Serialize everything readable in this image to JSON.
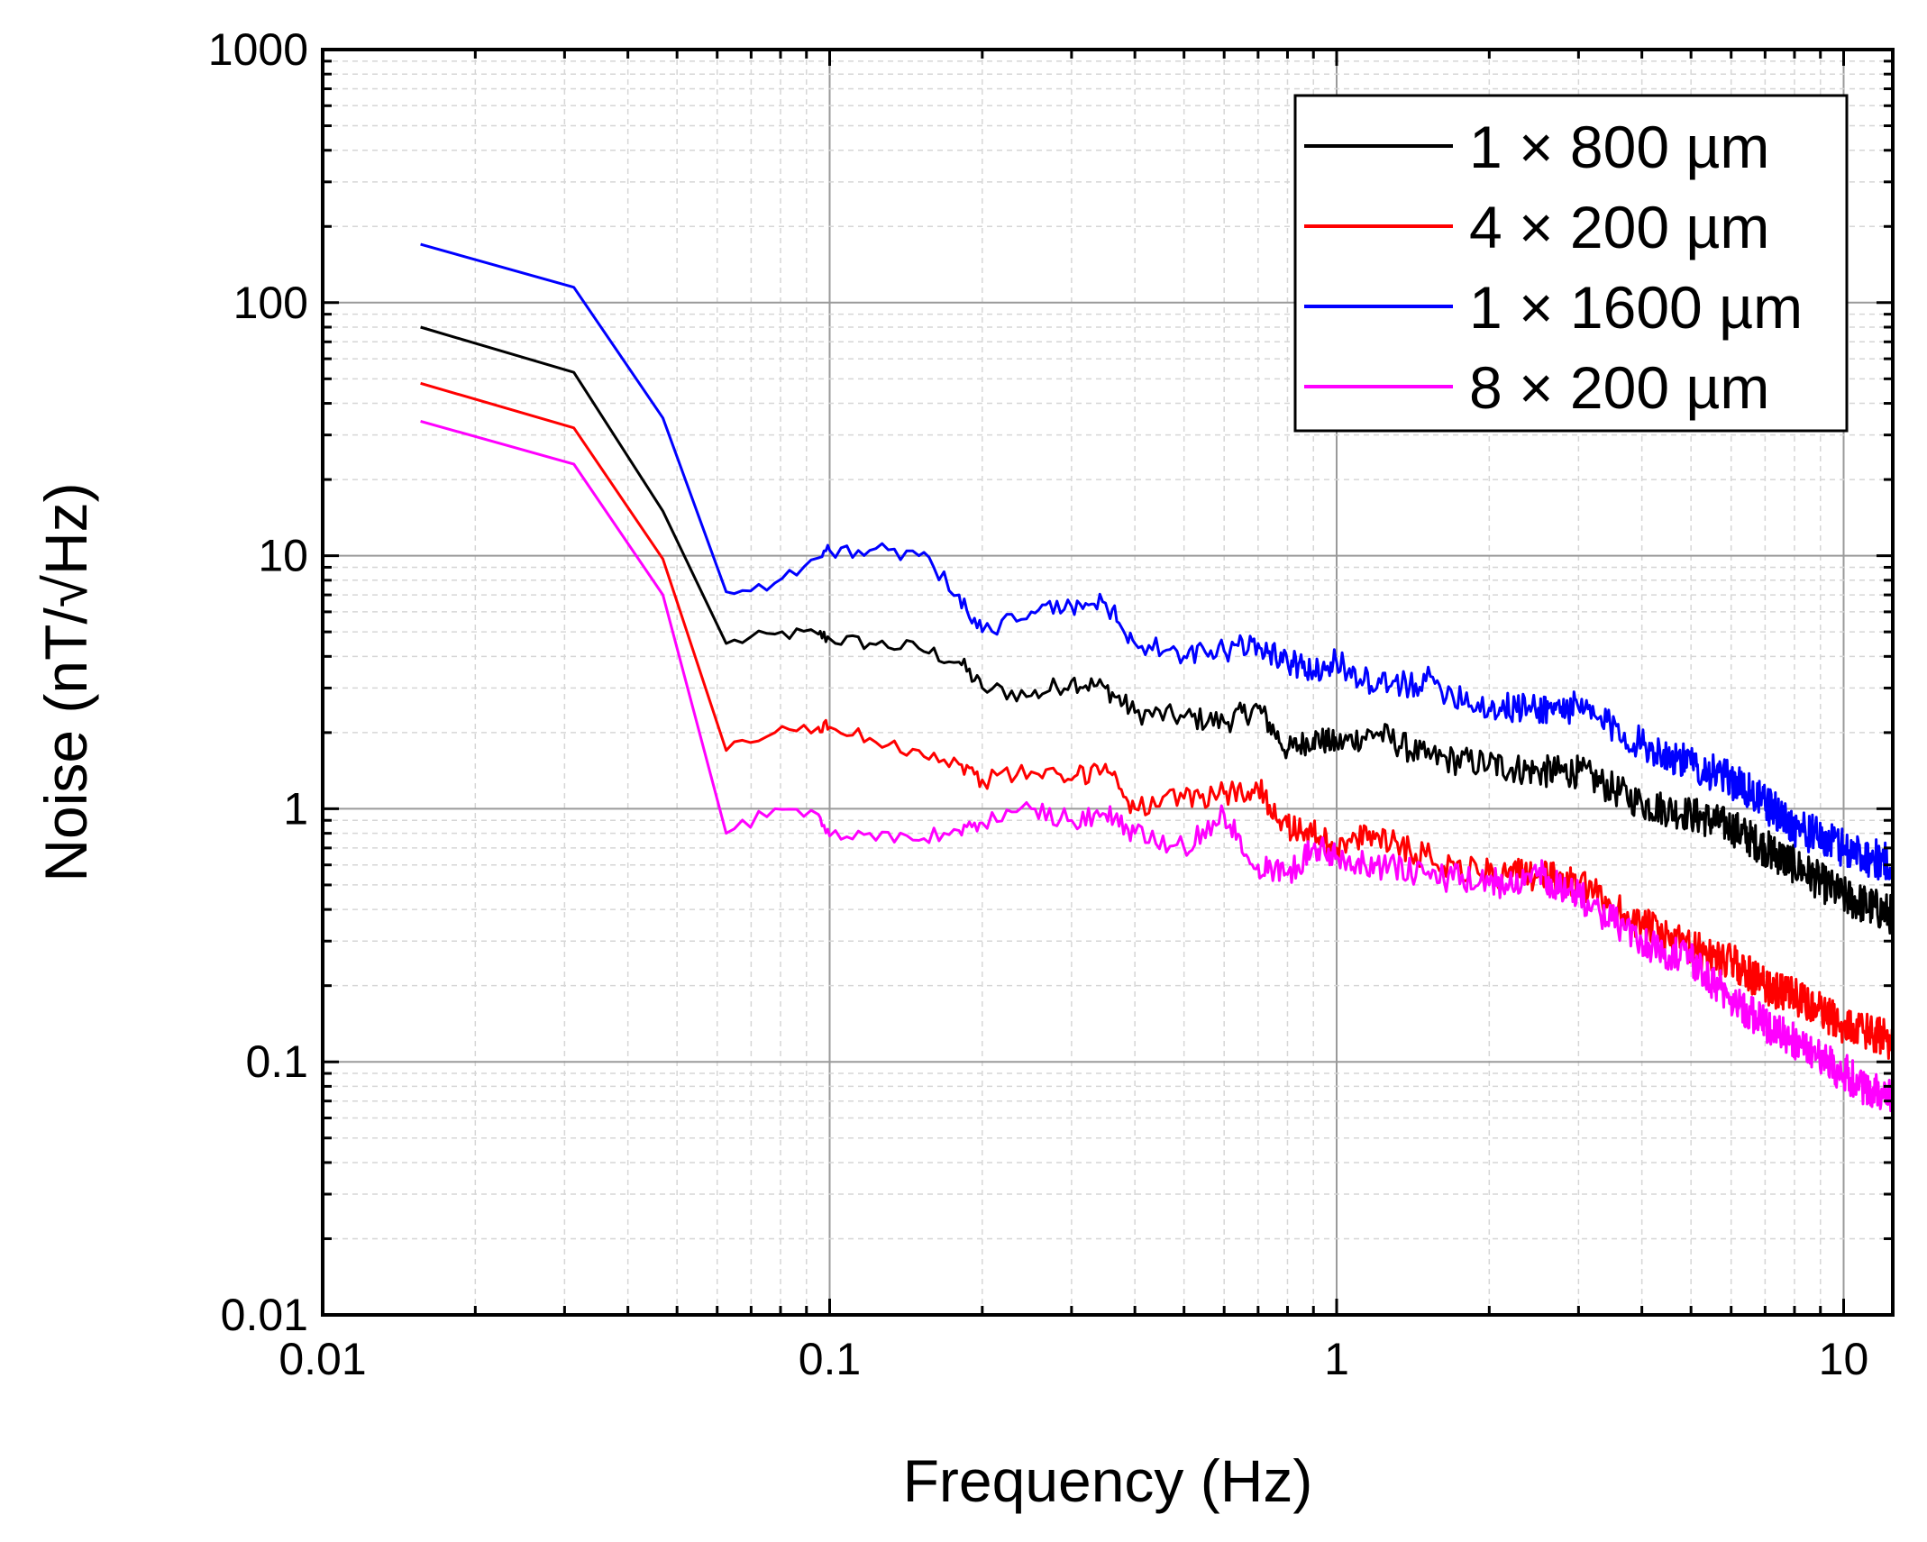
{
  "chart_data": {
    "type": "line",
    "title": "",
    "xlabel": "Frequency (Hz)",
    "ylabel": "Noise (nT/√Hz)",
    "x_scale": "log",
    "y_scale": "log",
    "xlim": [
      0.01,
      12.5
    ],
    "ylim": [
      0.01,
      1000
    ],
    "grid": true,
    "legend_position": "top-right",
    "x_ticks": [
      {
        "value": 0.01,
        "label": "0.01"
      },
      {
        "value": 0.1,
        "label": "0.1"
      },
      {
        "value": 1,
        "label": "1"
      },
      {
        "value": 10,
        "label": "10"
      }
    ],
    "y_ticks": [
      {
        "value": 0.01,
        "label": "0.01"
      },
      {
        "value": 0.1,
        "label": "0.1"
      },
      {
        "value": 1,
        "label": "1"
      },
      {
        "value": 10,
        "label": "10"
      },
      {
        "value": 100,
        "label": "100"
      },
      {
        "value": 1000,
        "label": "1000"
      }
    ],
    "series": [
      {
        "name": "1 × 800 µm",
        "color": "#000000",
        "x": [
          0.0156,
          0.0313,
          0.0469,
          0.0625,
          0.078,
          0.095,
          0.1,
          0.12,
          0.15,
          0.18,
          0.2,
          0.25,
          0.3,
          0.35,
          0.4,
          0.5,
          0.6,
          0.7,
          0.8,
          0.9,
          1.0,
          1.2,
          1.5,
          2.0,
          2.5,
          3.0,
          4.0,
          5.0,
          6.0,
          7.0,
          8.0,
          10.0,
          12.5
        ],
        "values": [
          80,
          53,
          15,
          4.5,
          4.9,
          4.9,
          4.7,
          4.5,
          4.3,
          3.8,
          3.0,
          2.8,
          3.2,
          3.0,
          2.4,
          2.3,
          2.2,
          2.5,
          1.7,
          1.9,
          1.8,
          2.0,
          1.6,
          1.5,
          1.4,
          1.4,
          1.05,
          0.95,
          0.85,
          0.7,
          0.6,
          0.45,
          0.38
        ]
      },
      {
        "name": "4 × 200 µm",
        "color": "#ff0000",
        "x": [
          0.0156,
          0.0313,
          0.0469,
          0.0625,
          0.078,
          0.095,
          0.1,
          0.12,
          0.15,
          0.18,
          0.2,
          0.25,
          0.3,
          0.35,
          0.4,
          0.5,
          0.6,
          0.7,
          0.8,
          0.9,
          1.0,
          1.2,
          1.5,
          2.0,
          2.5,
          3.0,
          4.0,
          5.0,
          6.0,
          7.0,
          8.0,
          10.0,
          12.5
        ],
        "values": [
          48,
          32,
          9.7,
          1.7,
          2.0,
          2.1,
          2.1,
          1.9,
          1.7,
          1.5,
          1.3,
          1.4,
          1.3,
          1.5,
          1.0,
          1.1,
          1.15,
          1.2,
          0.85,
          0.8,
          0.7,
          0.8,
          0.65,
          0.55,
          0.55,
          0.5,
          0.35,
          0.28,
          0.25,
          0.2,
          0.18,
          0.14,
          0.12
        ]
      },
      {
        "name": "1 × 1600 µm",
        "color": "#0000ff",
        "x": [
          0.0156,
          0.0313,
          0.0469,
          0.0625,
          0.078,
          0.095,
          0.1,
          0.12,
          0.15,
          0.18,
          0.2,
          0.25,
          0.3,
          0.35,
          0.4,
          0.5,
          0.6,
          0.7,
          0.8,
          0.9,
          1.0,
          1.2,
          1.5,
          2.0,
          2.5,
          3.0,
          4.0,
          5.0,
          6.0,
          7.0,
          8.0,
          10.0,
          12.5
        ],
        "values": [
          170,
          115,
          35,
          7.2,
          7.8,
          9.8,
          10.5,
          10.5,
          10.0,
          7.0,
          5.0,
          6.0,
          6.3,
          6.5,
          4.5,
          4.0,
          4.2,
          4.5,
          3.8,
          3.5,
          3.8,
          3.0,
          3.2,
          2.5,
          2.5,
          2.5,
          1.8,
          1.5,
          1.3,
          1.05,
          0.85,
          0.7,
          0.6
        ]
      },
      {
        "name": "8 × 200 µm",
        "color": "#ff00ff",
        "x": [
          0.0156,
          0.0313,
          0.0469,
          0.0625,
          0.078,
          0.095,
          0.1,
          0.12,
          0.15,
          0.18,
          0.2,
          0.25,
          0.3,
          0.35,
          0.4,
          0.5,
          0.6,
          0.7,
          0.8,
          0.9,
          1.0,
          1.2,
          1.5,
          2.0,
          2.5,
          3.0,
          4.0,
          5.0,
          6.0,
          7.0,
          8.0,
          10.0,
          12.5
        ],
        "values": [
          34,
          23,
          7.0,
          0.8,
          1.0,
          0.95,
          0.78,
          0.8,
          0.75,
          0.82,
          0.88,
          1.0,
          0.9,
          0.95,
          0.8,
          0.7,
          0.95,
          0.6,
          0.55,
          0.7,
          0.65,
          0.6,
          0.55,
          0.5,
          0.55,
          0.45,
          0.3,
          0.25,
          0.18,
          0.14,
          0.12,
          0.09,
          0.07
        ]
      }
    ]
  }
}
